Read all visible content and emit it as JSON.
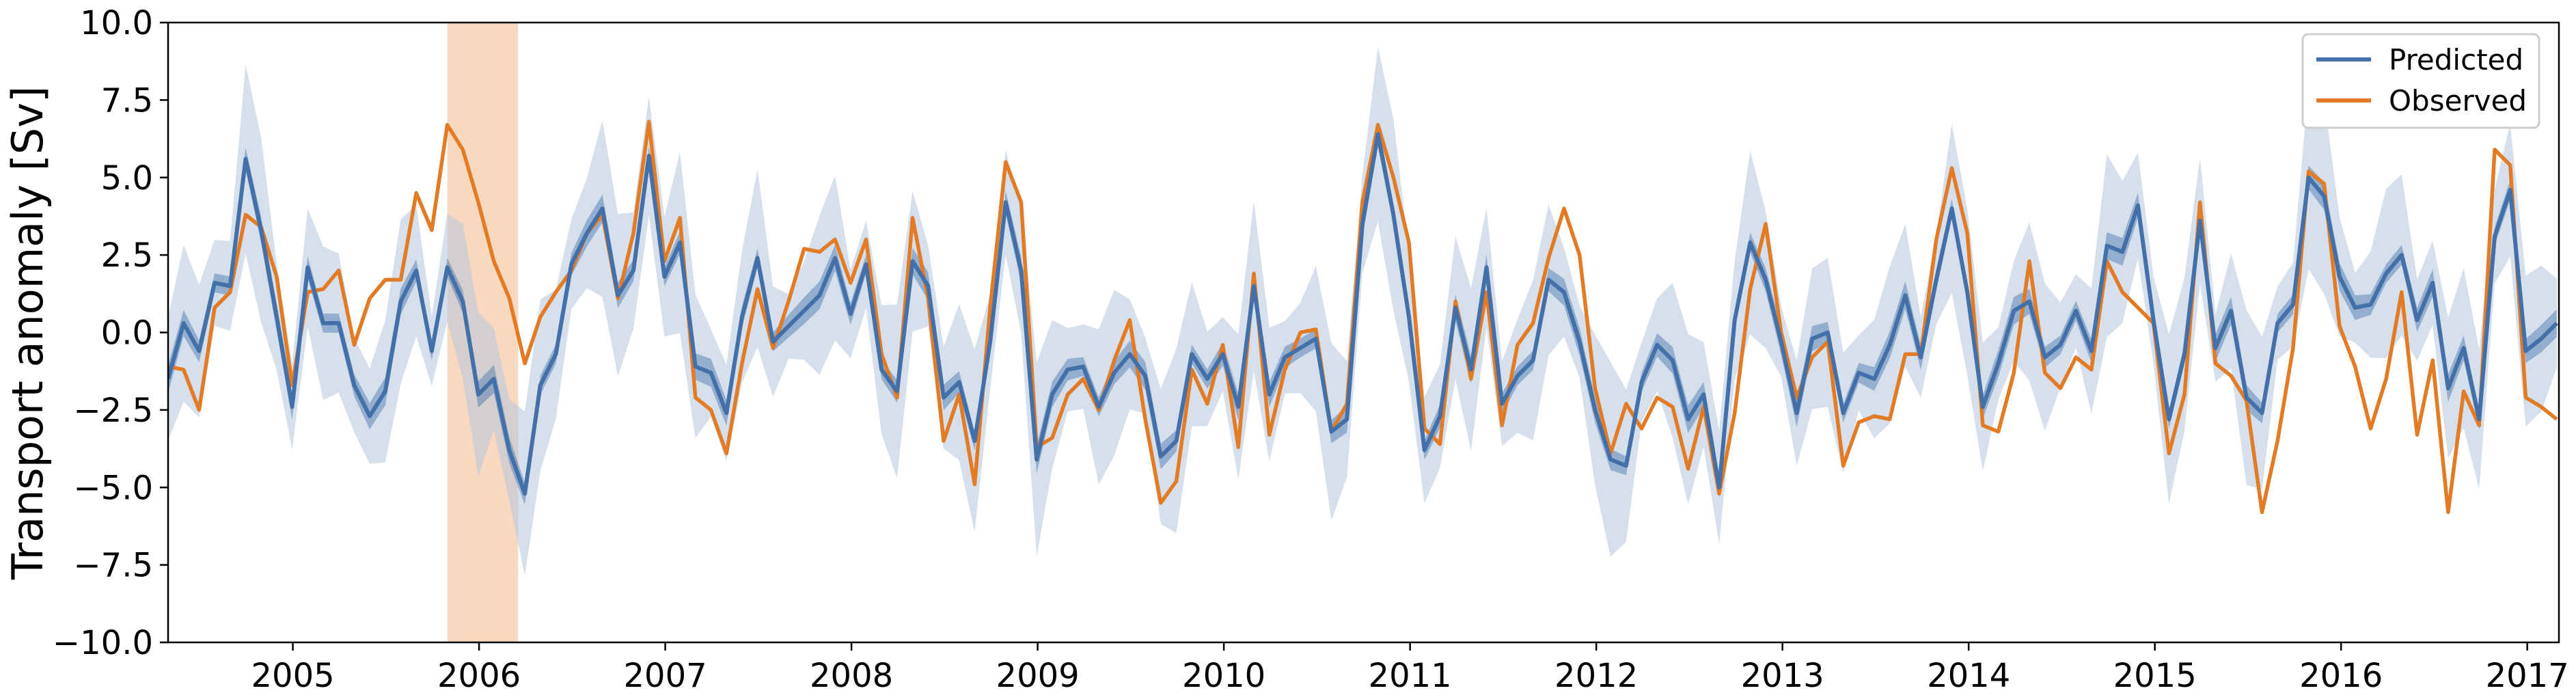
{
  "chart_data": {
    "type": "line",
    "title": "",
    "xlabel": "",
    "ylabel": "Transport anomaly [Sv]",
    "xlim": [
      2004.33,
      2017.17
    ],
    "ylim": [
      -10,
      10
    ],
    "xticks": [
      2005,
      2006,
      2007,
      2008,
      2009,
      2010,
      2011,
      2012,
      2013,
      2014,
      2015,
      2016,
      2017
    ],
    "xtick_labels": [
      "2005",
      "2006",
      "2007",
      "2008",
      "2009",
      "2010",
      "2011",
      "2012",
      "2013",
      "2014",
      "2015",
      "2016",
      "2017"
    ],
    "yticks": [
      -10,
      -7.5,
      -5,
      -2.5,
      0,
      2.5,
      5,
      7.5,
      10
    ],
    "ytick_labels": [
      "−10.0",
      "−7.5",
      "−5.0",
      "−2.5",
      "0.0",
      "2.5",
      "5.0",
      "7.5",
      "10.0"
    ],
    "grid": false,
    "legend_position": "top-right",
    "highlight_span": {
      "x0": 2005.83,
      "x1": 2006.21,
      "color": "#f5c7a4"
    },
    "x_start": 2004.33,
    "x_step": 0.0833,
    "series": [
      {
        "name": "Predicted",
        "color": "#4470aa",
        "band_color": "#b4c6de",
        "values": [
          -1.5,
          0.3,
          -0.6,
          1.6,
          1.5,
          5.6,
          3.3,
          0.5,
          -2.4,
          2.1,
          0.3,
          0.3,
          -1.7,
          -2.7,
          -1.9,
          1.0,
          2.0,
          -0.6,
          2.1,
          1.0,
          -2.0,
          -1.5,
          -3.8,
          -5.2,
          -1.7,
          -0.7,
          2.2,
          3.2,
          4.0,
          1.2,
          2.0,
          5.7,
          1.8,
          2.9,
          -1.1,
          -1.3,
          -2.6,
          0.5,
          2.4,
          -0.3,
          0.2,
          0.7,
          1.2,
          2.4,
          0.6,
          2.2,
          -1.2,
          -1.9,
          2.3,
          1.5,
          -2.1,
          -1.6,
          -3.5,
          -0.3,
          4.2,
          2.0,
          -4.1,
          -2.0,
          -1.2,
          -1.1,
          -2.4,
          -1.3,
          -0.7,
          -1.4,
          -4.0,
          -3.5,
          -0.7,
          -1.5,
          -0.7,
          -2.4,
          1.5,
          -2.0,
          -0.8,
          -0.5,
          -0.2,
          -3.2,
          -2.8,
          3.5,
          6.4,
          3.8,
          0.5,
          -3.8,
          -2.7,
          0.8,
          -1.2,
          2.1,
          -2.3,
          -1.4,
          -0.9,
          1.7,
          1.3,
          -0.3,
          -2.5,
          -4.1,
          -4.3,
          -1.6,
          -0.4,
          -0.9,
          -2.8,
          -2.0,
          -5.0,
          0.4,
          2.9,
          1.7,
          -0.3,
          -2.6,
          -0.2,
          0.0,
          -2.6,
          -1.3,
          -1.5,
          -0.4,
          1.2,
          -0.8,
          1.7,
          4.0,
          1.3,
          -2.4,
          -1.0,
          0.7,
          1.0,
          -0.8,
          -0.4,
          0.7,
          -0.6,
          2.8,
          2.6,
          4.1,
          0.4,
          -2.8,
          -0.7,
          3.6,
          -0.5,
          0.7,
          -2.1,
          -2.6,
          0.3,
          0.9,
          5.0,
          4.4,
          1.8,
          0.8,
          0.9,
          1.9,
          2.5,
          0.4,
          1.6,
          -1.8,
          -0.5,
          -2.8,
          3.1,
          4.6,
          -0.6,
          -0.2,
          0.3
        ]
      },
      {
        "name": "Observed",
        "color": "#e37a24",
        "values": [
          -1.1,
          -1.2,
          -2.5,
          0.8,
          1.3,
          3.8,
          3.4,
          1.8,
          -1.7,
          1.3,
          1.4,
          2.0,
          -0.4,
          1.1,
          1.7,
          1.7,
          4.5,
          3.3,
          6.7,
          5.9,
          4.2,
          2.3,
          1.1,
          -1.0,
          0.5,
          1.3,
          2.0,
          3.2,
          3.8,
          1.1,
          3.2,
          6.8,
          2.3,
          3.7,
          -2.1,
          -2.5,
          -3.9,
          -1.0,
          1.4,
          -0.5,
          1.0,
          2.7,
          2.6,
          3.0,
          1.6,
          3.0,
          -0.7,
          -2.1,
          3.7,
          1.1,
          -3.5,
          -2.0,
          -4.9,
          0.8,
          5.5,
          4.2,
          -3.7,
          -3.4,
          -2.0,
          -1.5,
          -2.5,
          -0.9,
          0.4,
          -2.8,
          -5.5,
          -4.8,
          -1.2,
          -2.3,
          -0.4,
          -3.7,
          1.9,
          -3.3,
          -1.2,
          0.0,
          0.1,
          -3.2,
          -2.3,
          4.2,
          6.7,
          5.0,
          2.9,
          -3.1,
          -3.6,
          1.0,
          -1.5,
          1.3,
          -3.0,
          -0.4,
          0.3,
          2.4,
          4.0,
          2.5,
          -1.8,
          -3.9,
          -2.3,
          -3.1,
          -2.1,
          -2.4,
          -4.4,
          -2.4,
          -5.2,
          -2.6,
          1.4,
          3.5,
          0.0,
          -2.1,
          -0.8,
          -0.3,
          -4.3,
          -2.9,
          -2.7,
          -2.8,
          -0.7,
          -0.7,
          3.0,
          5.3,
          3.2,
          -3.0,
          -3.2,
          -1.3,
          2.3,
          -1.3,
          -1.8,
          -0.8,
          -1.2,
          2.3,
          1.3,
          0.8,
          0.3,
          -3.9,
          -2.0,
          4.2,
          -1.0,
          -1.4,
          -2.2,
          -5.8,
          -3.5,
          -0.5,
          5.2,
          4.8,
          0.2,
          -1.1,
          -3.1,
          -1.5,
          1.3,
          -3.3,
          -0.9,
          -5.8,
          -1.9,
          -3.0,
          5.9,
          5.4,
          -2.1,
          -2.4,
          -2.8
        ]
      }
    ]
  }
}
